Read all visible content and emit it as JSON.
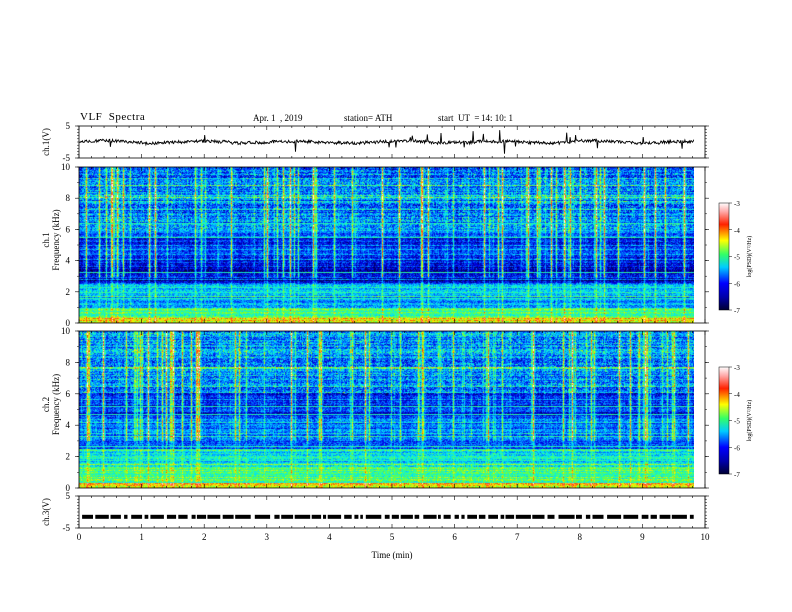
{
  "header": {
    "title": "VLF  Spectra",
    "date": "Apr. 1  , 2019",
    "station": "station= ATH",
    "start_label": "start  UT  =",
    "start_time": "14: 10: 1"
  },
  "colors": {
    "waveform": "#000000",
    "spectrogram_dark": "#000066",
    "spectrogram_blue": "#0000ff",
    "spectrogram_cyan": "#00ffff",
    "spectrogram_green": "#33ff66",
    "spectrogram_yellow": "#ffee00",
    "spectrogram_red": "#ee0000",
    "spectrogram_white": "#ffffff"
  },
  "chart_data": [
    {
      "type": "line",
      "panel": "ch1-waveform",
      "ylabel": "ch.1(V)",
      "ylim": [
        -5,
        5
      ],
      "yticks": [
        "5",
        "-5"
      ],
      "xlim": [
        0,
        10
      ],
      "xlabel": "",
      "approx_level": 0,
      "trace": "noisy baseline near 0 V with occasional spikes"
    },
    {
      "type": "heatmap",
      "panel": "ch1-spectrogram",
      "ylabel": "ch.1 Frequency  (kHz)",
      "ylim": [
        0,
        10
      ],
      "yticks": [
        "0",
        "2",
        "4",
        "6",
        "8",
        "10"
      ],
      "xlim": [
        0,
        10
      ],
      "xlabel": "",
      "colorbar": {
        "label": "log(PSD)(V²/Hz)",
        "ticks": [
          "-3",
          "-4",
          "-5",
          "-6",
          "-7"
        ],
        "range": [
          -7,
          -3
        ]
      }
    },
    {
      "type": "heatmap",
      "panel": "ch2-spectrogram",
      "ylabel": "ch.2 Frequency  (kHz)",
      "ylim": [
        0,
        10
      ],
      "yticks": [
        "0",
        "2",
        "4",
        "6",
        "8",
        "10"
      ],
      "xlim": [
        0,
        10
      ],
      "xlabel": "",
      "colorbar": {
        "label": "log(PSD)(V²/Hz)",
        "ticks": [
          "-3",
          "-4",
          "-5",
          "-6",
          "-7"
        ],
        "range": [
          -7,
          -3
        ]
      }
    },
    {
      "type": "line",
      "panel": "ch3-waveform",
      "ylabel": "ch.3(V)",
      "ylim": [
        -5,
        5
      ],
      "yticks": [
        "5",
        "-5"
      ],
      "xlim": [
        0,
        10
      ],
      "xlabel": "Time  (min)",
      "xticks": [
        "0",
        "1",
        "2",
        "3",
        "4",
        "5",
        "6",
        "7",
        "8",
        "9",
        "10"
      ],
      "approx_level": -1.5,
      "trace": "dashed pulse train near -1.5 V"
    }
  ]
}
